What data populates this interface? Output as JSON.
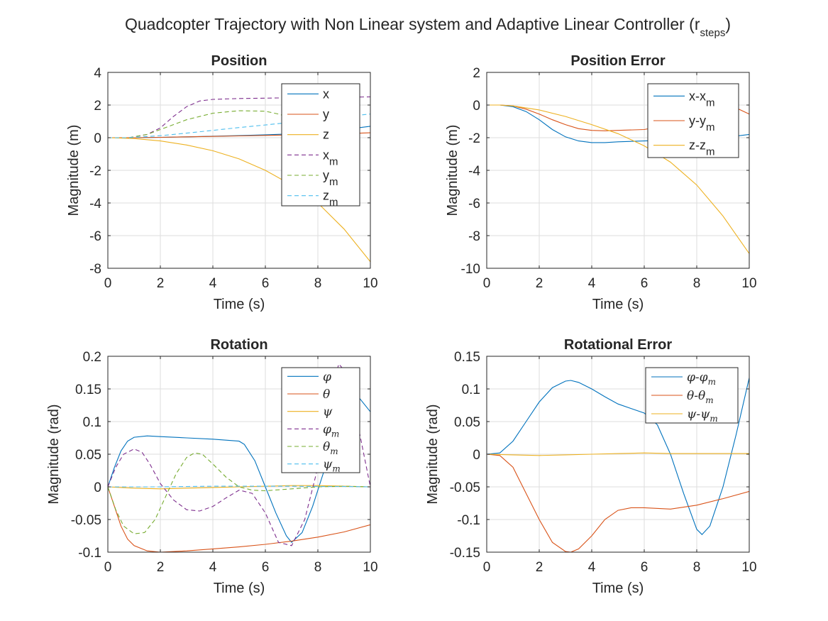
{
  "figure": {
    "title_main": "Quadcopter Trajectory with Non Linear system and Adaptive Linear Controller (r",
    "title_sub": "steps",
    "title_close": ")"
  },
  "colors": {
    "blue": "#0072BD",
    "orange": "#D95319",
    "yellow": "#EDB120",
    "purple": "#7E2F8E",
    "green": "#77AC30",
    "cyan": "#4DBEEE"
  },
  "chart_data": [
    {
      "type": "line",
      "title": "Position",
      "xlabel": "Time (s)",
      "ylabel": "Magnitude (m)",
      "xlim": [
        0,
        10
      ],
      "ylim": [
        -8,
        4
      ],
      "xticks": [
        0,
        2,
        4,
        6,
        8,
        10
      ],
      "yticks": [
        -8,
        -6,
        -4,
        -2,
        0,
        2,
        4
      ],
      "grid": true,
      "legend_location": "top-right",
      "series": [
        {
          "name": "x",
          "sub": "",
          "color": "blue",
          "dash": "solid",
          "x": [
            0,
            1,
            2,
            3,
            4,
            5,
            6,
            7,
            8,
            9,
            10
          ],
          "y": [
            0,
            0.0,
            0.02,
            0.05,
            0.09,
            0.13,
            0.18,
            0.23,
            0.32,
            0.5,
            0.7
          ]
        },
        {
          "name": "y",
          "sub": "",
          "color": "orange",
          "dash": "solid",
          "x": [
            0,
            1,
            2,
            3,
            4,
            5,
            6,
            7,
            8,
            9,
            10
          ],
          "y": [
            0,
            0.0,
            0.02,
            0.05,
            0.08,
            0.11,
            0.14,
            0.17,
            0.2,
            0.25,
            0.3
          ]
        },
        {
          "name": "z",
          "sub": "",
          "color": "yellow",
          "dash": "solid",
          "x": [
            0,
            1,
            2,
            3,
            4,
            5,
            6,
            7,
            8,
            9,
            10
          ],
          "y": [
            0,
            -0.05,
            -0.2,
            -0.45,
            -0.8,
            -1.3,
            -2.0,
            -2.9,
            -4.0,
            -5.6,
            -7.6
          ]
        },
        {
          "name": "x",
          "sub": "m",
          "color": "purple",
          "dash": "dash",
          "x": [
            0,
            0.8,
            1.5,
            2,
            2.5,
            3,
            3.5,
            4,
            5,
            6,
            7,
            8,
            9,
            10
          ],
          "y": [
            0,
            0,
            0.2,
            0.6,
            1.3,
            1.9,
            2.25,
            2.35,
            2.4,
            2.42,
            2.45,
            2.47,
            2.48,
            2.5
          ]
        },
        {
          "name": "y",
          "sub": "m",
          "color": "green",
          "dash": "dash",
          "x": [
            0,
            0.8,
            1.5,
            2,
            3,
            4,
            5,
            6,
            6.5,
            7,
            8
          ],
          "y": [
            0,
            0,
            0.2,
            0.5,
            1.1,
            1.5,
            1.65,
            1.62,
            1.45,
            1.2,
            0.8
          ]
        },
        {
          "name": "z",
          "sub": "m",
          "color": "cyan",
          "dash": "dash",
          "x": [
            0,
            0.8,
            2,
            3,
            4,
            5,
            6,
            7,
            8,
            9,
            10
          ],
          "y": [
            0,
            0,
            0.12,
            0.28,
            0.45,
            0.62,
            0.78,
            0.95,
            1.12,
            1.3,
            1.45
          ]
        }
      ]
    },
    {
      "type": "line",
      "title": "Position Error",
      "xlabel": "Time (s)",
      "ylabel": "Magnitude (m)",
      "xlim": [
        0,
        10
      ],
      "ylim": [
        -10,
        2
      ],
      "xticks": [
        0,
        2,
        4,
        6,
        8,
        10
      ],
      "yticks": [
        -10,
        -8,
        -6,
        -4,
        -2,
        0,
        2
      ],
      "grid": true,
      "legend_location": "top-right",
      "series": [
        {
          "name": "x-x",
          "sub": "m",
          "color": "blue",
          "dash": "solid",
          "x": [
            0,
            0.5,
            1,
            1.5,
            2,
            2.5,
            3,
            3.5,
            4,
            4.5,
            5,
            6,
            7,
            8,
            9,
            10
          ],
          "y": [
            0,
            0,
            -0.1,
            -0.4,
            -0.9,
            -1.5,
            -1.95,
            -2.2,
            -2.3,
            -2.3,
            -2.25,
            -2.2,
            -2.15,
            -2.1,
            -2.0,
            -1.8
          ]
        },
        {
          "name": "y-y",
          "sub": "m",
          "color": "orange",
          "dash": "solid",
          "x": [
            0,
            0.5,
            1,
            1.5,
            2,
            2.5,
            3,
            3.5,
            4,
            4.5,
            5,
            6,
            7,
            8,
            9,
            10
          ],
          "y": [
            0,
            0,
            -0.05,
            -0.25,
            -0.55,
            -0.9,
            -1.2,
            -1.45,
            -1.55,
            -1.58,
            -1.55,
            -1.5,
            -1.2,
            -0.6,
            0.2,
            -0.55
          ]
        },
        {
          "name": "z-z",
          "sub": "m",
          "color": "yellow",
          "dash": "solid",
          "x": [
            0,
            0.5,
            1,
            2,
            3,
            4,
            5,
            6,
            7,
            8,
            9,
            10
          ],
          "y": [
            0,
            0,
            -0.05,
            -0.3,
            -0.7,
            -1.2,
            -1.75,
            -2.5,
            -3.5,
            -4.9,
            -6.8,
            -9.1
          ]
        }
      ]
    },
    {
      "type": "line",
      "title": "Rotation",
      "xlabel": "Time (s)",
      "ylabel": "Magnitude (rad)",
      "xlim": [
        0,
        10
      ],
      "ylim": [
        -0.1,
        0.2
      ],
      "xticks": [
        0,
        2,
        4,
        6,
        8,
        10
      ],
      "yticks": [
        -0.1,
        -0.05,
        0,
        0.05,
        0.1,
        0.15,
        0.2
      ],
      "grid": true,
      "legend_location": "top-right",
      "series": [
        {
          "name": "φ",
          "sub": "",
          "color": "blue",
          "dash": "solid",
          "x": [
            0,
            0.25,
            0.5,
            0.75,
            1,
            1.5,
            2,
            3,
            4,
            5,
            5.2,
            5.6,
            6,
            6.4,
            6.8,
            7,
            7.4,
            7.8,
            8.2,
            8.6,
            9,
            9.5,
            10
          ],
          "y": [
            0,
            0.03,
            0.055,
            0.07,
            0.076,
            0.078,
            0.077,
            0.075,
            0.073,
            0.07,
            0.065,
            0.04,
            0.0,
            -0.04,
            -0.075,
            -0.085,
            -0.07,
            -0.03,
            0.02,
            0.07,
            0.11,
            0.14,
            0.115
          ]
        },
        {
          "name": "θ",
          "sub": "",
          "color": "orange",
          "dash": "solid",
          "x": [
            0,
            0.25,
            0.5,
            0.75,
            1,
            1.5,
            2,
            3,
            4,
            5,
            6,
            7,
            8,
            9,
            10
          ],
          "y": [
            0,
            -0.03,
            -0.06,
            -0.08,
            -0.09,
            -0.098,
            -0.1,
            -0.098,
            -0.095,
            -0.092,
            -0.088,
            -0.083,
            -0.077,
            -0.069,
            -0.058
          ]
        },
        {
          "name": "ψ",
          "sub": "",
          "color": "yellow",
          "dash": "solid",
          "x": [
            0,
            0.5,
            1,
            2,
            3,
            4,
            5,
            6,
            7,
            8,
            9,
            10
          ],
          "y": [
            0,
            -0.001,
            -0.002,
            -0.003,
            -0.002,
            -0.001,
            0,
            0.001,
            0.002,
            0.002,
            0.001,
            0.0
          ]
        },
        {
          "name": "φ",
          "sub": "m",
          "color": "purple",
          "dash": "dash",
          "x": [
            0,
            0.3,
            0.6,
            1,
            1.3,
            1.6,
            2,
            2.5,
            3,
            3.5,
            4,
            4.5,
            5,
            5.5,
            6,
            6.5,
            7,
            7.5,
            8,
            8.5,
            8.8,
            9.2,
            9.6,
            10
          ],
          "y": [
            0,
            0.03,
            0.05,
            0.058,
            0.053,
            0.035,
            0.005,
            -0.02,
            -0.035,
            -0.037,
            -0.03,
            -0.017,
            -0.005,
            -0.01,
            -0.04,
            -0.085,
            -0.09,
            -0.05,
            0.03,
            0.15,
            0.188,
            0.17,
            0.08,
            0.0
          ]
        },
        {
          "name": "θ",
          "sub": "m",
          "color": "green",
          "dash": "dash",
          "x": [
            0,
            0.3,
            0.6,
            1,
            1.4,
            1.8,
            2.2,
            2.6,
            3,
            3.3,
            3.6,
            4,
            4.5,
            5,
            5.5,
            6,
            7,
            8,
            9,
            10
          ],
          "y": [
            0,
            -0.035,
            -0.06,
            -0.072,
            -0.07,
            -0.05,
            -0.015,
            0.02,
            0.045,
            0.052,
            0.05,
            0.035,
            0.015,
            0.0,
            -0.005,
            -0.006,
            -0.003,
            0.0,
            0.001,
            0.0
          ]
        },
        {
          "name": "ψ",
          "sub": "m",
          "color": "cyan",
          "dash": "dash",
          "x": [
            0,
            1,
            2,
            3,
            4,
            5,
            6,
            7,
            8,
            9,
            10
          ],
          "y": [
            0,
            0,
            0,
            0.0005,
            0.001,
            0.001,
            0.001,
            0.001,
            0.0005,
            0.0005,
            0.0
          ]
        }
      ]
    },
    {
      "type": "line",
      "title": "Rotational Error",
      "xlabel": "Time (s)",
      "ylabel": "Magnitude (rad)",
      "xlim": [
        0,
        10
      ],
      "ylim": [
        -0.15,
        0.15
      ],
      "xticks": [
        0,
        2,
        4,
        6,
        8,
        10
      ],
      "yticks": [
        -0.15,
        -0.1,
        -0.05,
        0,
        0.05,
        0.1,
        0.15
      ],
      "grid": true,
      "legend_location": "top-right",
      "series": [
        {
          "name": "φ-φ",
          "sub": "m",
          "color": "blue",
          "dash": "solid",
          "x": [
            0,
            0.5,
            1,
            1.5,
            2,
            2.5,
            3,
            3.2,
            3.5,
            4,
            4.5,
            5,
            5.5,
            6,
            6.5,
            7,
            7.5,
            8,
            8.2,
            8.5,
            9,
            9.5,
            10
          ],
          "y": [
            0,
            0.002,
            0.02,
            0.05,
            0.08,
            0.102,
            0.112,
            0.113,
            0.11,
            0.1,
            0.088,
            0.077,
            0.07,
            0.063,
            0.045,
            0.0,
            -0.06,
            -0.115,
            -0.123,
            -0.11,
            -0.05,
            0.03,
            0.117
          ]
        },
        {
          "name": "θ-θ",
          "sub": "m",
          "color": "orange",
          "dash": "solid",
          "x": [
            0,
            0.5,
            1,
            1.5,
            2,
            2.5,
            3,
            3.2,
            3.5,
            4,
            4.5,
            5,
            5.5,
            6,
            7,
            8,
            9,
            10
          ],
          "y": [
            0,
            -0.002,
            -0.02,
            -0.06,
            -0.1,
            -0.135,
            -0.149,
            -0.15,
            -0.145,
            -0.125,
            -0.1,
            -0.086,
            -0.082,
            -0.082,
            -0.084,
            -0.078,
            -0.068,
            -0.057
          ]
        },
        {
          "name": "ψ-ψ",
          "sub": "m",
          "color": "yellow",
          "dash": "solid",
          "x": [
            0,
            1,
            2,
            3,
            4,
            5,
            6,
            7,
            8,
            9,
            10
          ],
          "y": [
            0,
            -0.001,
            -0.002,
            -0.001,
            0,
            0.001,
            0.002,
            0.001,
            0.001,
            0.001,
            0.001
          ]
        }
      ]
    }
  ]
}
